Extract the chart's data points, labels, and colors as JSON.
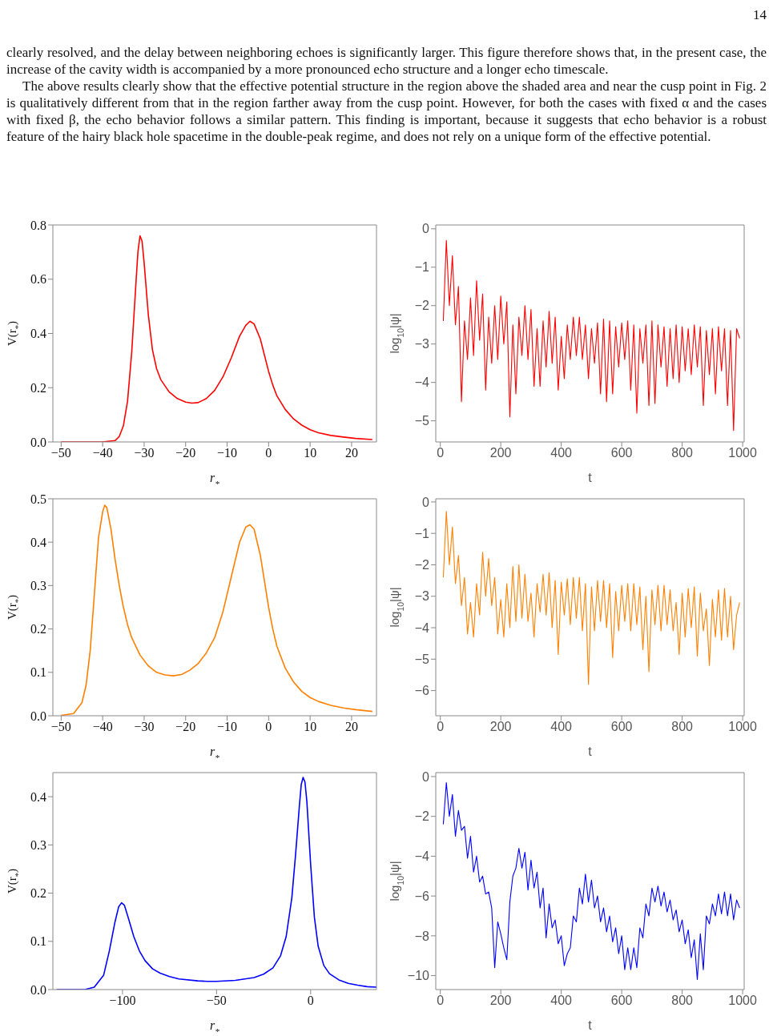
{
  "chart_data": [
    {
      "type": "line",
      "xlabel": "r$_{*}$",
      "ylabel": "V(r$_{*}$)",
      "annotations": [
        "14",
        "clearly resolved, and the delay between neighboring echoes is significantly larger. This figure therefore shows that, in the present case, the increase of the cavity width is accompanied by a more pronounced echo structure and a longer echo timescale.",
        "The above results clearly show that the effective potential structure in the region above the shaded area and near the cusp point in Fig. 2 is qualitatively different from that in the region farther away from the cusp point. However, for both the cases with fixed α and the cases with fixed β, the echo behavior follows a similar pattern. This finding is important, because it suggests that echo behavior is a robust feature of the hairy black hole spacetime in the double-peak regime, and does not rely on a unique form of the effective potential."
      ],
      "x": [
        -50,
        -40,
        -37,
        -36,
        -35,
        -34,
        -33,
        -32,
        -31.5,
        -31,
        -30.5,
        -30,
        -29,
        -28,
        -27,
        -26,
        -24,
        -22,
        -20,
        -18.5,
        -17,
        -15,
        -13,
        -11,
        -9,
        -7,
        -5.5,
        -4.5,
        -3.5,
        -2,
        -1,
        0,
        1,
        2,
        4,
        6,
        8,
        10,
        12,
        15,
        18,
        21,
        25
      ],
      "series": [
        {
          "color": "#ff0000",
          "values": [
            0,
            0,
            0.005,
            0.02,
            0.06,
            0.15,
            0.33,
            0.58,
            0.7,
            0.76,
            0.74,
            0.66,
            0.47,
            0.34,
            0.27,
            0.23,
            0.185,
            0.16,
            0.147,
            0.143,
            0.145,
            0.16,
            0.19,
            0.24,
            0.31,
            0.39,
            0.43,
            0.445,
            0.435,
            0.38,
            0.32,
            0.26,
            0.21,
            0.17,
            0.12,
            0.085,
            0.062,
            0.045,
            0.034,
            0.024,
            0.018,
            0.013,
            0.009
          ]
        }
      ],
      "xlim": [
        -52,
        26
      ],
      "xticks": [
        {
          "value": -50,
          "label": "−50"
        },
        {
          "value": -40,
          "label": "−40"
        },
        {
          "value": -30,
          "label": "−30"
        },
        {
          "value": -20,
          "label": "−20"
        },
        {
          "value": -10,
          "label": "−10"
        },
        0,
        10,
        20
      ],
      "ylim": [
        0,
        0.8
      ],
      "yticks": [
        {
          "value": 0,
          "label": "0.0"
        },
        0.2,
        0.4,
        0.6,
        0.8
      ]
    },
    {
      "type": "line",
      "xlabel": "t",
      "ylabel": "log$_{10}$|ψ|",
      "x": [
        10,
        20,
        30,
        40,
        50,
        60,
        70,
        80,
        90,
        100,
        110,
        120,
        130,
        140,
        150,
        160,
        170,
        180,
        190,
        200,
        210,
        220,
        230,
        240,
        250,
        260,
        270,
        280,
        290,
        300,
        310,
        320,
        330,
        340,
        350,
        360,
        370,
        380,
        390,
        400,
        410,
        420,
        430,
        440,
        450,
        460,
        470,
        480,
        490,
        500,
        510,
        520,
        530,
        540,
        550,
        560,
        570,
        580,
        590,
        600,
        610,
        620,
        630,
        640,
        650,
        660,
        670,
        680,
        690,
        700,
        710,
        720,
        730,
        740,
        750,
        760,
        770,
        780,
        790,
        800,
        810,
        820,
        830,
        840,
        850,
        860,
        870,
        880,
        890,
        900,
        910,
        920,
        930,
        940,
        950,
        960,
        970,
        980,
        990
      ],
      "series": [
        {
          "color": "#ff0000",
          "values": [
            -2.4,
            -0.3,
            -2.0,
            -0.7,
            -2.5,
            -1.5,
            -4.5,
            -2.4,
            -3.4,
            -1.8,
            -3.3,
            -1.35,
            -2.9,
            -1.7,
            -4.2,
            -2.3,
            -3.5,
            -2.0,
            -3.4,
            -1.75,
            -3.0,
            -1.9,
            -4.9,
            -2.5,
            -4.3,
            -2.3,
            -3.3,
            -2.0,
            -3.4,
            -2.1,
            -4.1,
            -2.6,
            -4.1,
            -2.4,
            -3.6,
            -2.15,
            -3.5,
            -2.3,
            -4.2,
            -2.8,
            -3.9,
            -2.5,
            -3.4,
            -2.3,
            -3.3,
            -2.3,
            -3.4,
            -2.5,
            -3.9,
            -2.6,
            -3.5,
            -2.45,
            -4.3,
            -2.35,
            -4.5,
            -2.4,
            -4.3,
            -2.55,
            -3.6,
            -2.45,
            -3.4,
            -2.4,
            -4.2,
            -2.5,
            -4.8,
            -2.6,
            -3.5,
            -2.5,
            -4.6,
            -2.4,
            -4.55,
            -2.5,
            -3.6,
            -2.55,
            -4.1,
            -2.6,
            -3.9,
            -2.5,
            -4.0,
            -2.55,
            -3.7,
            -2.6,
            -3.8,
            -2.5,
            -3.6,
            -2.55,
            -4.6,
            -2.65,
            -3.8,
            -2.6,
            -4.3,
            -2.55,
            -3.7,
            -2.6,
            -4.6,
            -2.65,
            -5.25,
            -2.6,
            -2.85
          ]
        }
      ],
      "xlim": [
        -15,
        1005
      ],
      "xticks": [
        0,
        200,
        400,
        600,
        800,
        1000
      ],
      "ylim": [
        -5.55,
        0.1
      ],
      "yticks": [
        0,
        {
          "value": -1,
          "label": "−1"
        },
        {
          "value": -2,
          "label": "−2"
        },
        {
          "value": -3,
          "label": "−3"
        },
        {
          "value": -4,
          "label": "−4"
        },
        {
          "value": -5,
          "label": "−5"
        }
      ]
    },
    {
      "type": "line",
      "xlabel": "r$_{*}$",
      "ylabel": "V(r$_{*}$)",
      "x": [
        -50,
        -47,
        -45,
        -44,
        -43,
        -42,
        -41,
        -40,
        -39.5,
        -39,
        -38,
        -37,
        -36,
        -35,
        -34,
        -33,
        -31,
        -29,
        -27,
        -25,
        -23,
        -21,
        -19,
        -17,
        -15,
        -13,
        -11,
        -9,
        -7,
        -5.5,
        -4.5,
        -3.5,
        -2,
        -1,
        0,
        1,
        2,
        4,
        6,
        8,
        10,
        12,
        15,
        18,
        21,
        25
      ],
      "series": [
        {
          "color": "#ff8000",
          "values": [
            0.001,
            0.005,
            0.03,
            0.07,
            0.15,
            0.28,
            0.41,
            0.47,
            0.485,
            0.48,
            0.43,
            0.36,
            0.3,
            0.25,
            0.21,
            0.18,
            0.14,
            0.115,
            0.1,
            0.094,
            0.092,
            0.095,
            0.105,
            0.12,
            0.145,
            0.18,
            0.24,
            0.32,
            0.4,
            0.435,
            0.44,
            0.43,
            0.37,
            0.31,
            0.25,
            0.2,
            0.16,
            0.11,
            0.078,
            0.056,
            0.042,
            0.033,
            0.024,
            0.018,
            0.014,
            0.01
          ]
        }
      ],
      "xlim": [
        -52,
        26
      ],
      "xticks": [
        {
          "value": -50,
          "label": "−50"
        },
        {
          "value": -40,
          "label": "−40"
        },
        {
          "value": -30,
          "label": "−30"
        },
        {
          "value": -20,
          "label": "−20"
        },
        {
          "value": -10,
          "label": "−10"
        },
        0,
        10,
        20
      ],
      "ylim": [
        0,
        0.5
      ],
      "yticks": [
        {
          "value": 0,
          "label": "0.0"
        },
        0.1,
        0.2,
        0.3,
        0.4,
        0.5
      ]
    },
    {
      "type": "line",
      "xlabel": "t",
      "ylabel": "log$_{10}$|ψ|",
      "x": [
        10,
        20,
        30,
        40,
        50,
        60,
        70,
        80,
        90,
        100,
        110,
        120,
        130,
        140,
        150,
        160,
        170,
        180,
        190,
        200,
        210,
        220,
        230,
        240,
        250,
        260,
        270,
        280,
        290,
        300,
        310,
        320,
        330,
        340,
        350,
        360,
        370,
        380,
        390,
        400,
        410,
        420,
        430,
        440,
        450,
        460,
        470,
        480,
        490,
        500,
        510,
        520,
        530,
        540,
        550,
        560,
        570,
        580,
        590,
        600,
        610,
        620,
        630,
        640,
        650,
        660,
        670,
        680,
        690,
        700,
        710,
        720,
        730,
        740,
        750,
        760,
        770,
        780,
        790,
        800,
        810,
        820,
        830,
        840,
        850,
        860,
        870,
        880,
        890,
        900,
        910,
        920,
        930,
        940,
        950,
        960,
        970,
        980,
        990
      ],
      "series": [
        {
          "color": "#ff8000",
          "values": [
            -2.4,
            -0.3,
            -2.0,
            -0.8,
            -2.6,
            -1.7,
            -3.3,
            -2.4,
            -4.2,
            -3.2,
            -4.3,
            -2.6,
            -3.6,
            -1.6,
            -3.0,
            -1.8,
            -3.3,
            -2.4,
            -4.2,
            -3.1,
            -4.3,
            -2.6,
            -4.0,
            -2.05,
            -3.8,
            -2.0,
            -3.7,
            -2.3,
            -3.8,
            -2.9,
            -4.3,
            -2.6,
            -3.5,
            -2.3,
            -3.6,
            -2.25,
            -4.0,
            -2.5,
            -4.85,
            -2.55,
            -3.6,
            -2.45,
            -3.9,
            -2.4,
            -3.7,
            -2.4,
            -4.1,
            -2.6,
            -5.8,
            -2.7,
            -4.1,
            -2.5,
            -3.8,
            -2.5,
            -4.0,
            -2.6,
            -4.95,
            -2.85,
            -4.1,
            -2.65,
            -3.8,
            -2.6,
            -4.1,
            -2.6,
            -3.9,
            -2.7,
            -4.7,
            -3.0,
            -5.4,
            -2.8,
            -3.9,
            -2.65,
            -4.1,
            -2.65,
            -3.9,
            -2.8,
            -4.1,
            -3.2,
            -4.85,
            -2.9,
            -4.3,
            -2.75,
            -4.0,
            -2.7,
            -4.9,
            -2.9,
            -4.1,
            -3.4,
            -5.2,
            -3.1,
            -4.3,
            -2.8,
            -4.4,
            -2.75,
            -4.3,
            -3.0,
            -4.7,
            -3.6,
            -3.2
          ]
        }
      ],
      "xlim": [
        -15,
        1005
      ],
      "xticks": [
        0,
        200,
        400,
        600,
        800,
        1000
      ],
      "ylim": [
        -6.8,
        0.1
      ],
      "yticks": [
        0,
        {
          "value": -1,
          "label": "−1"
        },
        {
          "value": -2,
          "label": "−2"
        },
        {
          "value": -3,
          "label": "−3"
        },
        {
          "value": -4,
          "label": "−4"
        },
        {
          "value": -5,
          "label": "−5"
        },
        {
          "value": -6,
          "label": "−6"
        }
      ]
    },
    {
      "type": "line",
      "xlabel": "r$_{*}$",
      "ylabel": "V(r$_{*}$)",
      "x": [
        -135,
        -120,
        -115,
        -110,
        -107,
        -104,
        -102,
        -100.5,
        -99,
        -97,
        -94,
        -91,
        -88,
        -84,
        -80,
        -75,
        -70,
        -60,
        -55,
        -50,
        -40,
        -30,
        -25,
        -20,
        -16,
        -13,
        -10,
        -8,
        -6,
        -5,
        -4,
        -3,
        -2,
        0,
        2,
        4,
        7,
        10,
        15,
        20,
        25,
        30,
        35
      ],
      "series": [
        {
          "color": "#0000ff",
          "values": [
            0,
            0,
            0.005,
            0.03,
            0.08,
            0.14,
            0.172,
            0.18,
            0.175,
            0.15,
            0.11,
            0.08,
            0.06,
            0.043,
            0.034,
            0.027,
            0.022,
            0.018,
            0.017,
            0.017,
            0.019,
            0.025,
            0.032,
            0.045,
            0.07,
            0.11,
            0.19,
            0.28,
            0.38,
            0.425,
            0.44,
            0.43,
            0.39,
            0.26,
            0.15,
            0.09,
            0.05,
            0.033,
            0.02,
            0.013,
            0.009,
            0.006,
            0.005
          ]
        }
      ],
      "xlim": [
        -137,
        35
      ],
      "xticks": [
        {
          "value": -100,
          "label": "−100"
        },
        {
          "value": -50,
          "label": "−50"
        },
        0
      ],
      "ylim": [
        0,
        0.45
      ],
      "yticks": [
        {
          "value": 0,
          "label": "0.0"
        },
        0.1,
        0.2,
        0.3,
        0.4
      ]
    },
    {
      "type": "line",
      "xlabel": "t",
      "ylabel": "log$_{10}$|ψ|",
      "x": [
        10,
        20,
        30,
        40,
        50,
        60,
        70,
        80,
        90,
        100,
        110,
        120,
        130,
        140,
        150,
        160,
        170,
        180,
        190,
        200,
        210,
        220,
        230,
        240,
        250,
        260,
        270,
        280,
        290,
        300,
        310,
        320,
        330,
        340,
        350,
        360,
        370,
        380,
        390,
        400,
        410,
        420,
        430,
        440,
        450,
        460,
        470,
        480,
        490,
        500,
        510,
        520,
        530,
        540,
        550,
        560,
        570,
        580,
        590,
        600,
        610,
        620,
        630,
        640,
        650,
        660,
        670,
        680,
        690,
        700,
        710,
        720,
        730,
        740,
        750,
        760,
        770,
        780,
        790,
        800,
        810,
        820,
        830,
        840,
        850,
        860,
        870,
        880,
        890,
        900,
        910,
        920,
        930,
        940,
        950,
        960,
        970,
        980,
        990
      ],
      "series": [
        {
          "color": "#0000ff",
          "values": [
            -2.4,
            -0.3,
            -2.0,
            -0.9,
            -3.0,
            -1.7,
            -2.7,
            -2.5,
            -4.1,
            -3.0,
            -4.8,
            -4.0,
            -5.3,
            -5.0,
            -5.9,
            -5.8,
            -6.6,
            -9.6,
            -7.3,
            -7.9,
            -8.6,
            -9.2,
            -6.3,
            -5.0,
            -4.6,
            -3.6,
            -4.6,
            -3.8,
            -5.7,
            -4.2,
            -5.6,
            -4.8,
            -6.6,
            -5.6,
            -8.1,
            -6.4,
            -7.6,
            -7.2,
            -8.4,
            -8.0,
            -9.5,
            -8.9,
            -8.6,
            -7.0,
            -7.3,
            -5.6,
            -6.4,
            -4.9,
            -6.3,
            -5.2,
            -6.6,
            -6.0,
            -7.3,
            -6.6,
            -7.8,
            -7.0,
            -8.3,
            -7.6,
            -8.9,
            -8.0,
            -9.7,
            -8.6,
            -9.7,
            -8.6,
            -9.6,
            -7.6,
            -8.1,
            -6.4,
            -7.0,
            -5.6,
            -6.3,
            -5.5,
            -6.5,
            -5.8,
            -6.8,
            -6.2,
            -7.2,
            -6.7,
            -7.8,
            -7.2,
            -8.4,
            -7.7,
            -9.1,
            -8.2,
            -10.2,
            -7.9,
            -9.7,
            -7.0,
            -7.4,
            -6.4,
            -7.0,
            -5.9,
            -6.9,
            -5.8,
            -7.0,
            -5.9,
            -7.2,
            -6.2,
            -6.6
          ]
        }
      ],
      "xlim": [
        -15,
        1005
      ],
      "xticks": [
        0,
        200,
        400,
        600,
        800,
        1000
      ],
      "ylim": [
        -10.7,
        0.2
      ],
      "yticks": [
        0,
        {
          "value": -2,
          "label": "−2"
        },
        {
          "value": -4,
          "label": "−4"
        },
        {
          "value": -6,
          "label": "−6"
        },
        {
          "value": -8,
          "label": "−8"
        },
        {
          "value": -10,
          "label": "−10"
        }
      ]
    }
  ]
}
